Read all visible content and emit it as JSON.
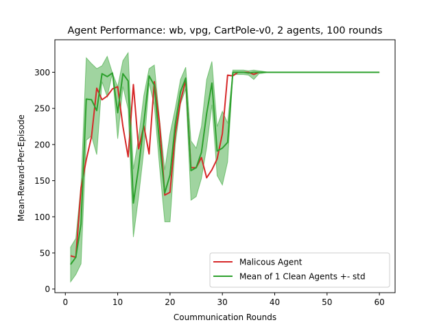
{
  "chart_data": {
    "type": "line",
    "title": "Agent Performance: wb, vpg, CartPole-v0, 2 agents, 100 rounds",
    "xlabel": "Coummunication Rounds",
    "ylabel": "Mean-Reward-Per-Episode",
    "xlim": [
      -2,
      63
    ],
    "ylim": [
      -5,
      345
    ],
    "xticks": [
      0,
      10,
      20,
      30,
      40,
      50,
      60
    ],
    "yticks": [
      0,
      50,
      100,
      150,
      200,
      250,
      300
    ],
    "grid": false,
    "legend_position": "lower-right",
    "x": [
      1,
      2,
      3,
      4,
      5,
      6,
      7,
      8,
      9,
      10,
      11,
      12,
      13,
      14,
      15,
      16,
      17,
      18,
      19,
      20,
      21,
      22,
      23,
      24,
      25,
      26,
      27,
      28,
      29,
      30,
      31,
      32,
      33,
      34,
      35,
      36,
      37,
      38,
      39,
      40,
      41,
      42,
      43,
      44,
      45,
      46,
      47,
      48,
      49,
      50,
      51,
      52,
      53,
      54,
      55,
      56,
      57,
      58,
      59,
      60
    ],
    "series": [
      {
        "name": "Malicous Agent",
        "color": "#d62728",
        "values": [
          46,
          44,
          140,
          179,
          211,
          278,
          262,
          267,
          277,
          280,
          225,
          183,
          283,
          194,
          226,
          187,
          287,
          229,
          130,
          134,
          215,
          260,
          289,
          168,
          168,
          182,
          154,
          165,
          180,
          215,
          296,
          295,
          300,
          300,
          300,
          297,
          300,
          300,
          300,
          300,
          300,
          300,
          300,
          300,
          300,
          300,
          300,
          300,
          300,
          300,
          300,
          300,
          300,
          300,
          300,
          300,
          300,
          300,
          300,
          300
        ]
      },
      {
        "name": "Mean of 1 Clean Agents +- std",
        "color": "#2ca02c",
        "values": [
          34,
          44,
          90,
          263,
          262,
          247,
          298,
          294,
          299,
          244,
          298,
          288,
          119,
          169,
          230,
          295,
          282,
          202,
          133,
          158,
          228,
          273,
          292,
          164,
          168,
          189,
          243,
          285,
          191,
          195,
          203,
          300,
          300,
          300,
          299,
          300,
          300,
          300,
          300,
          300,
          300,
          300,
          300,
          300,
          300,
          300,
          300,
          300,
          300,
          300,
          300,
          300,
          300,
          300,
          300,
          300,
          300,
          300,
          300,
          300
        ],
        "upper": [
          58,
          70,
          145,
          320,
          312,
          305,
          309,
          322,
          299,
          280,
          316,
          327,
          166,
          210,
          268,
          305,
          310,
          235,
          165,
          215,
          250,
          290,
          307,
          205,
          195,
          225,
          290,
          315,
          225,
          246,
          230,
          303,
          303,
          303,
          302,
          303,
          302,
          301,
          300,
          300,
          300,
          300,
          300,
          300,
          300,
          300,
          300,
          300,
          300,
          300,
          300,
          300,
          300,
          300,
          300,
          300,
          300,
          300,
          300,
          300
        ],
        "lower": [
          10,
          20,
          35,
          206,
          212,
          186,
          287,
          266,
          299,
          208,
          280,
          249,
          72,
          128,
          192,
          285,
          254,
          169,
          93,
          93,
          200,
          256,
          277,
          123,
          128,
          153,
          196,
          255,
          157,
          144,
          176,
          297,
          297,
          297,
          296,
          290,
          298,
          299,
          300,
          300,
          300,
          300,
          300,
          300,
          300,
          300,
          300,
          300,
          300,
          300,
          300,
          300,
          300,
          300,
          300,
          300,
          300,
          300,
          300,
          300
        ]
      }
    ]
  }
}
